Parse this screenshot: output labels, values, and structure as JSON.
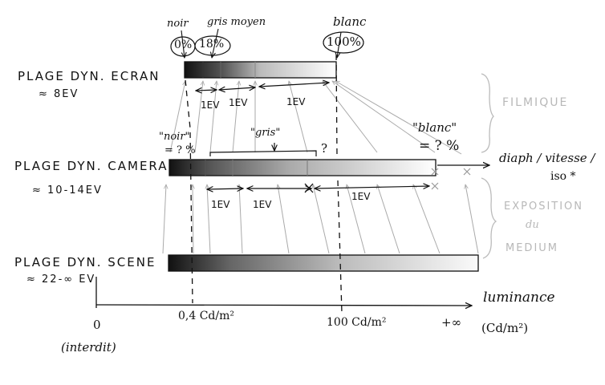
{
  "bars": {
    "ecran": {
      "label": "PLAGE DYN. ECRAN",
      "range": "≈ 8EV"
    },
    "camera": {
      "label": "PLAGE DYN. CAMERA",
      "range": "≈ 10-14EV"
    },
    "scene": {
      "label": "PLAGE DYN. SCENE",
      "range": "≈ 22-∞ EV"
    }
  },
  "top_labels": {
    "noir": "noir",
    "gris_moyen": "gris moyen",
    "blanc": "blanc",
    "pct_noir": "0%",
    "pct_gris": "18%",
    "pct_blanc": "100%"
  },
  "camera_labels": {
    "noir": "\"noir\"",
    "noir_pct": "= ? %",
    "gris": "\"gris\"",
    "q": "?",
    "blanc": "\"blanc\"",
    "blanc_pct": "= ? %"
  },
  "ev_ecran": [
    "1EV",
    "1EV",
    "1EV"
  ],
  "ev_camera": [
    "1EV",
    "1EV",
    "1EV"
  ],
  "side_labels": {
    "filmique": "FILMIQUE",
    "expo_1": "EXPOSITION",
    "expo_2": "du",
    "expo_3": "MEDIUM",
    "diaph_1": "diaph / vitesse /",
    "diaph_2": "iso *"
  },
  "axis": {
    "label": "luminance",
    "unit": "(Cd/m²)",
    "tick_zero": "0",
    "tick_zero_note": "(interdit)",
    "tick_04": "0,4 Cd/m²",
    "tick_100": "100 Cd/m²",
    "tick_inf": "+∞"
  }
}
